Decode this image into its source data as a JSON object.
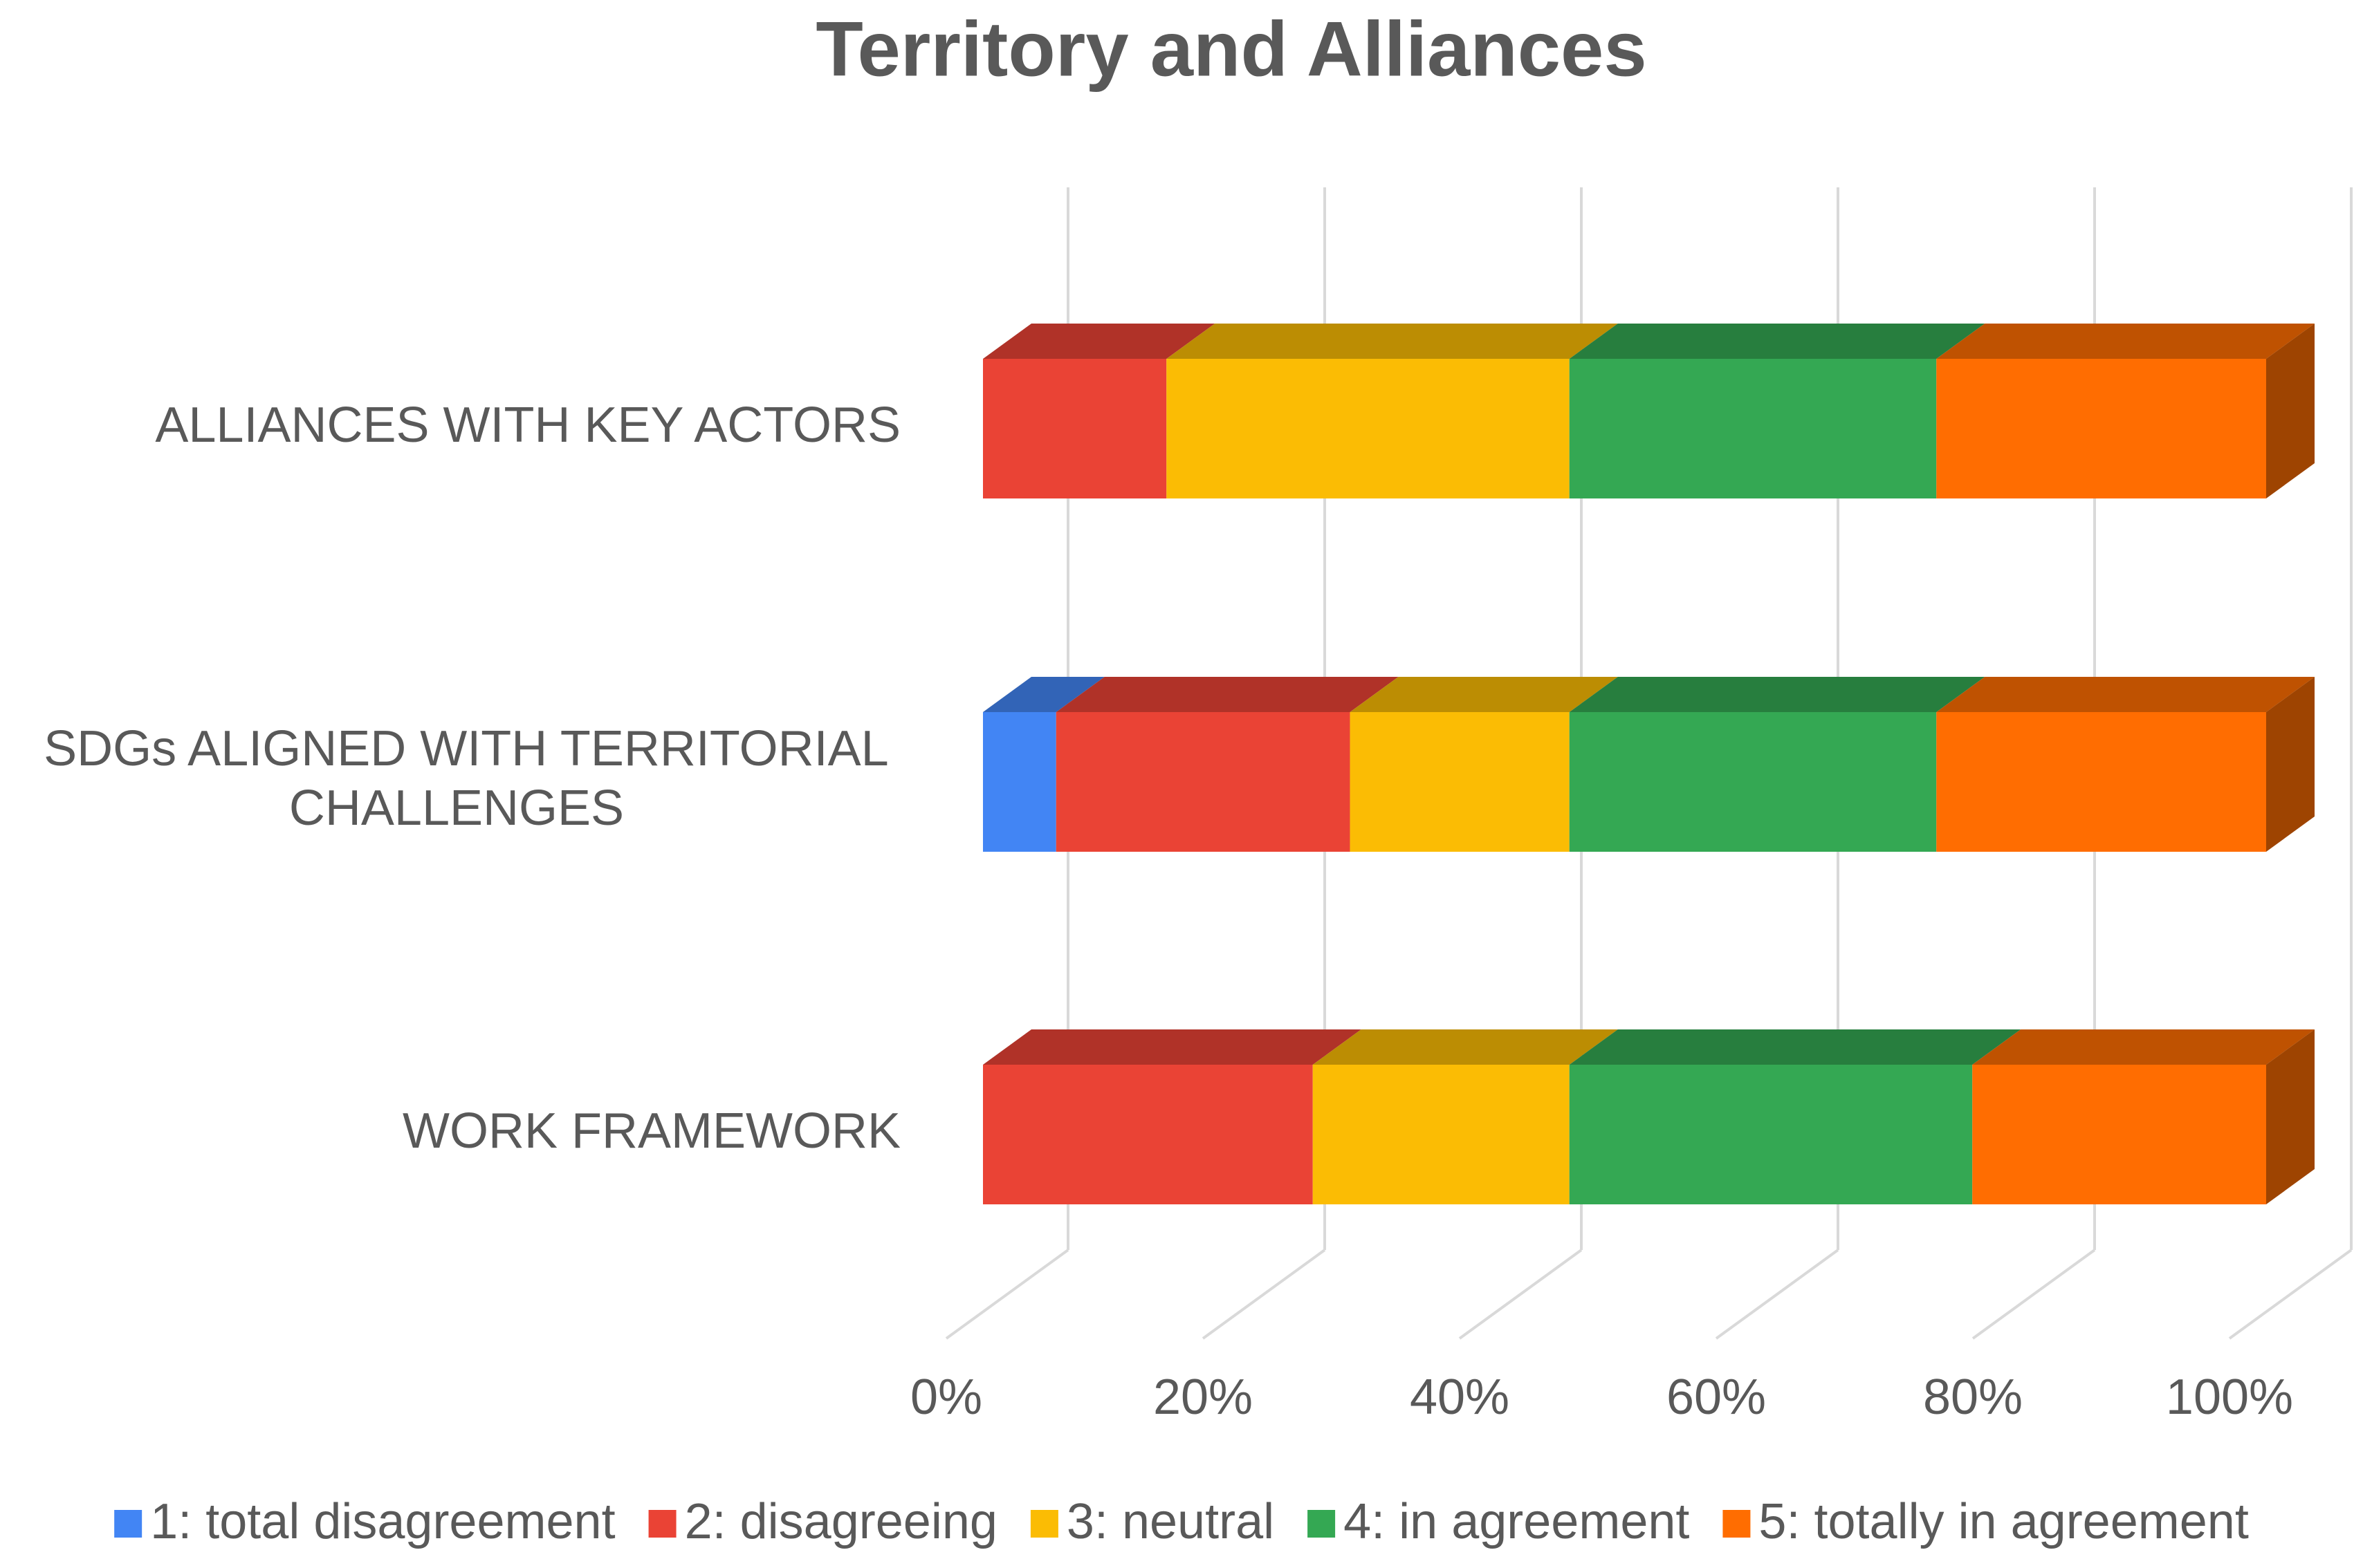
{
  "chart_data": {
    "type": "stacked-bar-3d",
    "title": "Territory and Alliances",
    "categories": [
      "ALLIANCES WITH KEY ACTORS",
      "SDGs ALIGNED WITH TERRITORIAL CHALLENGES",
      "WORK FRAMEWORK"
    ],
    "series": [
      {
        "name": "1: total disagreement",
        "color": "#4285f4",
        "values": [
          0,
          5.7,
          0
        ]
      },
      {
        "name": "2: disagreeing",
        "color": "#ea4335",
        "values": [
          14.3,
          22.9,
          25.7
        ]
      },
      {
        "name": "3: neutral",
        "color": "#fbbc04",
        "values": [
          31.4,
          17.1,
          20.0
        ]
      },
      {
        "name": "4: in agreement",
        "color": "#34a853",
        "values": [
          28.6,
          28.6,
          31.4
        ]
      },
      {
        "name": "5: totally in agreement",
        "color": "#ff6d01",
        "values": [
          25.7,
          25.7,
          22.9
        ]
      }
    ],
    "xlim": [
      0,
      100
    ],
    "xticks": [
      {
        "value": 0,
        "label": "0%"
      },
      {
        "value": 20,
        "label": "20%"
      },
      {
        "value": 40,
        "label": "40%"
      },
      {
        "value": 60,
        "label": "60%"
      },
      {
        "value": 80,
        "label": "80%"
      },
      {
        "value": 100,
        "label": "100%"
      }
    ],
    "grid": true,
    "legend": "bottom"
  }
}
